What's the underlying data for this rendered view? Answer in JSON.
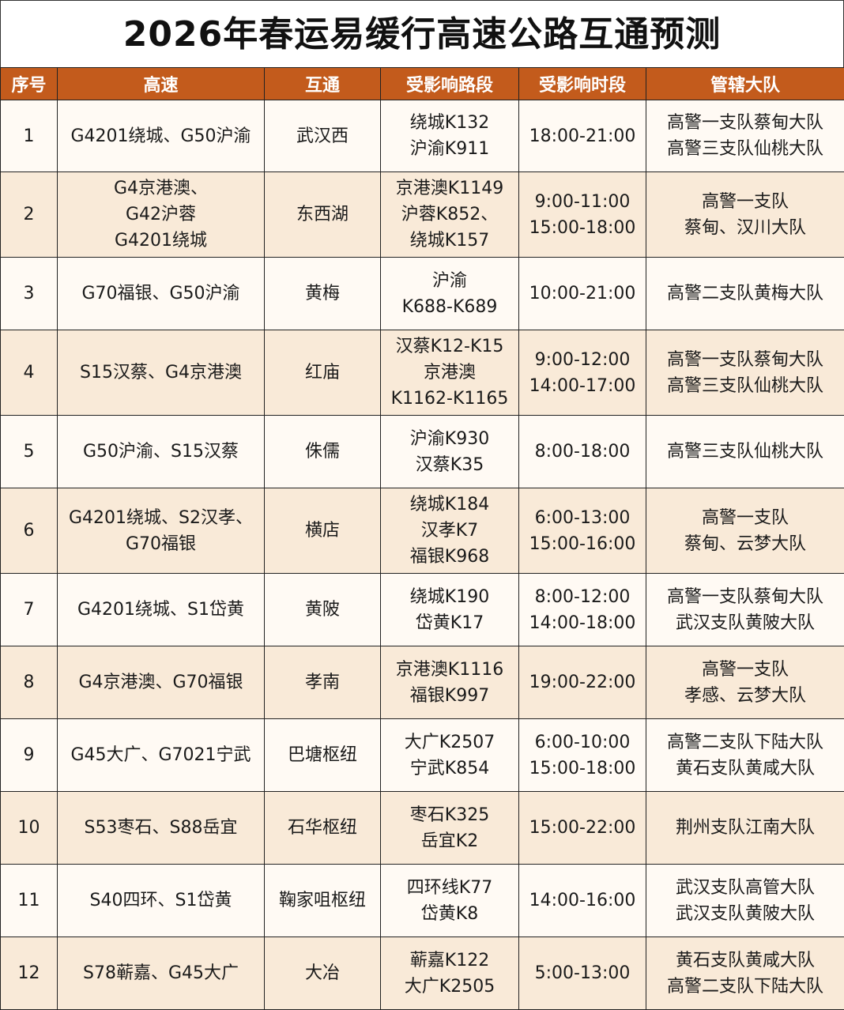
{
  "title": "2026年春运易缓行高速公路互通预测",
  "colors": {
    "header_bg": "#c35b1c",
    "header_text": "#ffffff",
    "row_odd": "#fffaf4",
    "row_even": "#f9ead8"
  },
  "columns": [
    "序号",
    "高速",
    "互通",
    "受影响路段",
    "受影响时段",
    "管辖大队"
  ],
  "rows": [
    {
      "no": "1",
      "highway": [
        "G4201绕城、G50沪渝"
      ],
      "interchange": [
        "武汉西"
      ],
      "sections": [
        "绕城K132",
        "沪渝K911"
      ],
      "times": [
        "18:00-21:00"
      ],
      "brigade": [
        "高警一支队蔡甸大队",
        "高警三支队仙桃大队"
      ]
    },
    {
      "no": "2",
      "highway": [
        "G4京港澳、",
        "G42沪蓉",
        "G4201绕城"
      ],
      "interchange": [
        "东西湖"
      ],
      "sections": [
        "京港澳K1149",
        "沪蓉K852、",
        "绕城K157"
      ],
      "times": [
        "9:00-11:00",
        "15:00-18:00"
      ],
      "brigade": [
        "高警一支队",
        "蔡甸、汉川大队"
      ]
    },
    {
      "no": "3",
      "highway": [
        "G70福银、G50沪渝"
      ],
      "interchange": [
        "黄梅"
      ],
      "sections": [
        "沪渝",
        "K688-K689"
      ],
      "times": [
        "10:00-21:00"
      ],
      "brigade": [
        "高警二支队黄梅大队"
      ]
    },
    {
      "no": "4",
      "highway": [
        "S15汉蔡、G4京港澳"
      ],
      "interchange": [
        "红庙"
      ],
      "sections": [
        "汉蔡K12-K15",
        "京港澳",
        "K1162-K1165"
      ],
      "times": [
        "9:00-12:00",
        "14:00-17:00"
      ],
      "brigade": [
        "高警一支队蔡甸大队",
        "高警三支队仙桃大队"
      ]
    },
    {
      "no": "5",
      "highway": [
        "G50沪渝、S15汉蔡"
      ],
      "interchange": [
        "侏儒"
      ],
      "sections": [
        "沪渝K930",
        "汉蔡K35"
      ],
      "times": [
        "8:00-18:00"
      ],
      "brigade": [
        "高警三支队仙桃大队"
      ]
    },
    {
      "no": "6",
      "highway": [
        "G4201绕城、S2汉孝、",
        "G70福银"
      ],
      "interchange": [
        "横店"
      ],
      "sections": [
        "绕城K184",
        "汉孝K7",
        "福银K968"
      ],
      "times": [
        "6:00-13:00",
        "15:00-16:00"
      ],
      "brigade": [
        "高警一支队",
        "蔡甸、云梦大队"
      ]
    },
    {
      "no": "7",
      "highway": [
        "G4201绕城、S1岱黄"
      ],
      "interchange": [
        "黄陂"
      ],
      "sections": [
        "绕城K190",
        "岱黄K17"
      ],
      "times": [
        "8:00-12:00",
        "14:00-18:00"
      ],
      "brigade": [
        "高警一支队蔡甸大队",
        "武汉支队黄陂大队"
      ]
    },
    {
      "no": "8",
      "highway": [
        "G4京港澳、G70福银"
      ],
      "interchange": [
        "孝南"
      ],
      "sections": [
        "京港澳K1116",
        "福银K997"
      ],
      "times": [
        "19:00-22:00"
      ],
      "brigade": [
        "高警一支队",
        "孝感、云梦大队"
      ]
    },
    {
      "no": "9",
      "highway": [
        "G45大广、G7021宁武"
      ],
      "interchange": [
        "巴塘枢纽"
      ],
      "sections": [
        "大广K2507",
        "宁武K854"
      ],
      "times": [
        "6:00-10:00",
        "15:00-18:00"
      ],
      "brigade": [
        "高警二支队下陆大队",
        "黄石支队黄咸大队"
      ]
    },
    {
      "no": "10",
      "highway": [
        "S53枣石、S88岳宜"
      ],
      "interchange": [
        "石华枢纽"
      ],
      "sections": [
        "枣石K325",
        "岳宜K2"
      ],
      "times": [
        "15:00-22:00"
      ],
      "brigade": [
        "荆州支队江南大队"
      ]
    },
    {
      "no": "11",
      "highway": [
        "S40四环、S1岱黄"
      ],
      "interchange": [
        "鞠家咀枢纽"
      ],
      "sections": [
        "四环线K77",
        "岱黄K8"
      ],
      "times": [
        "14:00-16:00"
      ],
      "brigade": [
        "武汉支队高管大队",
        "武汉支队黄陂大队"
      ]
    },
    {
      "no": "12",
      "highway": [
        "S78蕲嘉、G45大广"
      ],
      "interchange": [
        "大冶"
      ],
      "sections": [
        "蕲嘉K122",
        "大广K2505"
      ],
      "times": [
        "5:00-13:00"
      ],
      "brigade": [
        "黄石支队黄咸大队",
        "高警二支队下陆大队"
      ]
    }
  ]
}
